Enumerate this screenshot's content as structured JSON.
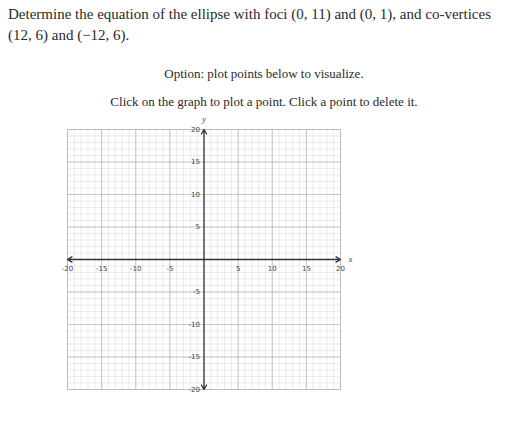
{
  "question": "Determine the equation of the ellipse with foci (0, 11) and (0, 1), and co-vertices (12, 6) and (−12, 6).",
  "option": "Option: plot points below to visualize.",
  "instruction": "Click on the graph to plot a point. Click a point to delete it.",
  "chart_data": {
    "type": "scatter",
    "x": [],
    "values": [],
    "x_label": "x",
    "y_label": "y",
    "xlim": [
      -20,
      20
    ],
    "ylim": [
      -20,
      20
    ],
    "xticks": [
      -20,
      -15,
      -10,
      -5,
      5,
      10,
      15,
      20
    ],
    "yticks": [
      -20,
      -15,
      -10,
      -5,
      5,
      10,
      15,
      20
    ],
    "grid": true
  }
}
